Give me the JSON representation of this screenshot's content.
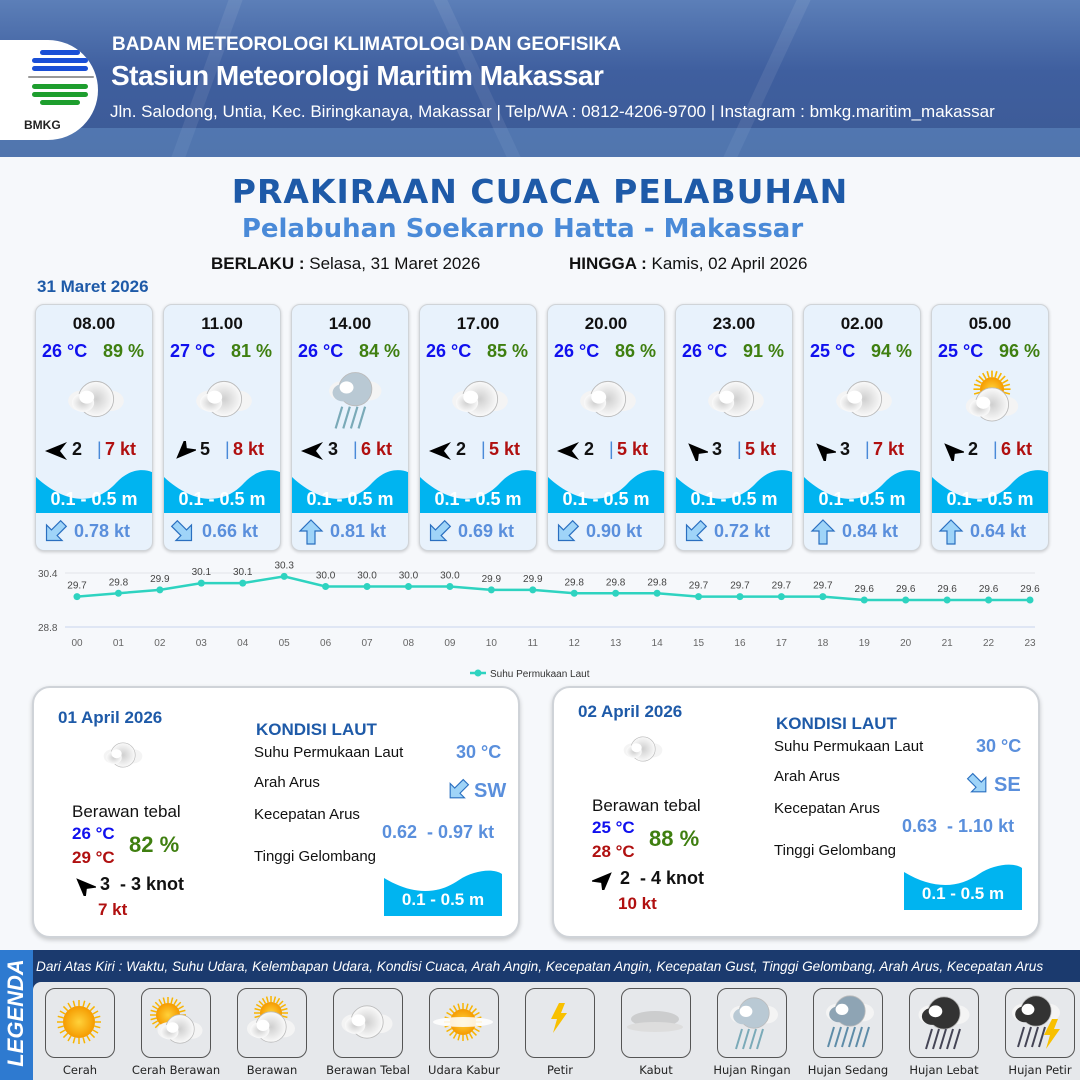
{
  "header": {
    "logo_text": "BMKG",
    "agency": "BADAN METEOROLOGI KLIMATOLOGI DAN GEOFISIKA",
    "station": "Stasiun Meteorologi Maritim Makassar",
    "contact": "Jln. Salodong, Untia, Kec. Biringkanaya, Makassar | Telp/WA : 0812-4206-9700 | Instagram : bmkg.maritim_makassar"
  },
  "title": "PRAKIRAAN CUACA PELABUHAN",
  "subtitle": "Pelabuhan Soekarno Hatta - Makassar",
  "validity": {
    "from_label": "BERLAKU :",
    "from": "Selasa, 31 Maret 2026",
    "to_label": "HINGGA :",
    "to": "Kamis, 02 April 2026"
  },
  "colors": {
    "primary": "#1e5aa8",
    "wave": "#00b4f0",
    "temp": "#1010ee",
    "humidity": "#3f7f10",
    "gust": "#b01010",
    "current": "#5a8fdc",
    "chart_line": "#2ed3c0"
  },
  "day0": {
    "date": "31 Maret 2026",
    "cards": [
      {
        "time": "08.00",
        "temp": "26 °C",
        "hum": "89 %",
        "weather": "berawan-tebal",
        "wind_dir_deg": 270,
        "wind": "2",
        "gust": "7 kt",
        "wave": "0.1 - 0.5 m",
        "current_dir": "SW",
        "current": "0.78 kt"
      },
      {
        "time": "11.00",
        "temp": "27 °C",
        "hum": "81 %",
        "weather": "berawan-tebal",
        "wind_dir_deg": 225,
        "wind": "5",
        "gust": "8 kt",
        "wave": "0.1 - 0.5 m",
        "current_dir": "SE",
        "current": "0.66 kt"
      },
      {
        "time": "14.00",
        "temp": "26 °C",
        "hum": "84 %",
        "weather": "hujan-ringan",
        "wind_dir_deg": 270,
        "wind": "3",
        "gust": "6 kt",
        "wave": "0.1 - 0.5 m",
        "current_dir": "N",
        "current": "0.81 kt"
      },
      {
        "time": "17.00",
        "temp": "26 °C",
        "hum": "85 %",
        "weather": "berawan-tebal",
        "wind_dir_deg": 270,
        "wind": "2",
        "gust": "5 kt",
        "wave": "0.1 - 0.5 m",
        "current_dir": "SW",
        "current": "0.69 kt"
      },
      {
        "time": "20.00",
        "temp": "26 °C",
        "hum": "86 %",
        "weather": "berawan-tebal",
        "wind_dir_deg": 270,
        "wind": "2",
        "gust": "5 kt",
        "wave": "0.1 - 0.5 m",
        "current_dir": "SW",
        "current": "0.90 kt"
      },
      {
        "time": "23.00",
        "temp": "26 °C",
        "hum": "91 %",
        "weather": "berawan-tebal",
        "wind_dir_deg": 315,
        "wind": "3",
        "gust": "5 kt",
        "wave": "0.1 - 0.5 m",
        "current_dir": "SW",
        "current": "0.72 kt"
      },
      {
        "time": "02.00",
        "temp": "25 °C",
        "hum": "94 %",
        "weather": "berawan-tebal",
        "wind_dir_deg": 315,
        "wind": "3",
        "gust": "7 kt",
        "wave": "0.1 - 0.5 m",
        "current_dir": "N",
        "current": "0.84 kt"
      },
      {
        "time": "05.00",
        "temp": "25 °C",
        "hum": "96 %",
        "weather": "berawan",
        "wind_dir_deg": 315,
        "wind": "2",
        "gust": "6 kt",
        "wave": "0.1 - 0.5 m",
        "current_dir": "N",
        "current": "0.64 kt"
      }
    ]
  },
  "chart_data": {
    "type": "line",
    "x": [
      "00",
      "01",
      "02",
      "03",
      "04",
      "05",
      "06",
      "07",
      "08",
      "09",
      "10",
      "11",
      "12",
      "13",
      "14",
      "15",
      "16",
      "17",
      "18",
      "19",
      "20",
      "21",
      "22",
      "23"
    ],
    "series": [
      {
        "name": "Suhu Permukaan Laut",
        "values": [
          29.7,
          29.8,
          29.9,
          30.1,
          30.1,
          30.3,
          30.0,
          30.0,
          30.0,
          30.0,
          29.9,
          29.9,
          29.8,
          29.8,
          29.8,
          29.7,
          29.7,
          29.7,
          29.7,
          29.6,
          29.6,
          29.6,
          29.6,
          29.6
        ]
      }
    ],
    "yticks": [
      "30.4",
      "28.8"
    ],
    "ylim": [
      28.8,
      30.4
    ],
    "grid": true,
    "legend_position": "bottom-center",
    "data_labels": true
  },
  "days": [
    {
      "date": "01 April 2026",
      "weather": "berawan-tebal",
      "weather_label": "Berawan tebal",
      "tmin": "26 °C",
      "tmax": "29 °C",
      "hum": "82 %",
      "wind_dir_deg": 315,
      "wind": "3  - 3 knot",
      "gust": "7 kt",
      "sea": {
        "title": "KONDISI LAUT",
        "sst_label": "Suhu Permukaan Laut",
        "sst": "30 °C",
        "dir_label": "Arah Arus",
        "dir": "SW",
        "speed_label": "Kecepatan Arus",
        "speed": "0.62  - 0.97 kt",
        "wave_label": "Tinggi Gelombang",
        "wave": "0.1 - 0.5 m"
      }
    },
    {
      "date": "02 April 2026",
      "weather": "berawan-tebal",
      "weather_label": "Berawan tebal",
      "tmin": "25 °C",
      "tmax": "28 °C",
      "hum": "88 %",
      "wind_dir_deg": 45,
      "wind": "2  - 4 knot",
      "gust": "10 kt",
      "sea": {
        "title": "KONDISI LAUT",
        "sst_label": "Suhu Permukaan Laut",
        "sst": "30 °C",
        "dir_label": "Arah Arus",
        "dir": "SE",
        "speed_label": "Kecepatan Arus",
        "speed": "0.63  - 1.10 kt",
        "wave_label": "Tinggi Gelombang",
        "wave": "0.1 - 0.5 m"
      }
    }
  ],
  "legend": {
    "title": "LEGENDA",
    "description": "Dari Atas Kiri : Waktu, Suhu Udara, Kelembapan Udara, Kondisi Cuaca, Arah Angin, Kecepatan Angin, Kecepatan Gust, Tinggi Gelombang, Arah Arus, Kecepatan Arus",
    "items": [
      {
        "label": "Cerah",
        "icon": "cerah"
      },
      {
        "label": "Cerah Berawan",
        "icon": "cerah-berawan"
      },
      {
        "label": "Berawan",
        "icon": "berawan"
      },
      {
        "label": "Berawan Tebal",
        "icon": "berawan-tebal"
      },
      {
        "label": "Udara Kabur",
        "icon": "udara-kabur"
      },
      {
        "label": "Petir",
        "icon": "petir"
      },
      {
        "label": "Kabut",
        "icon": "kabut"
      },
      {
        "label": "Hujan Ringan",
        "icon": "hujan-ringan"
      },
      {
        "label": "Hujan Sedang",
        "icon": "hujan-sedang"
      },
      {
        "label": "Hujan Lebat",
        "icon": "hujan-lebat"
      },
      {
        "label": "Hujan Petir",
        "icon": "hujan-petir"
      }
    ]
  }
}
